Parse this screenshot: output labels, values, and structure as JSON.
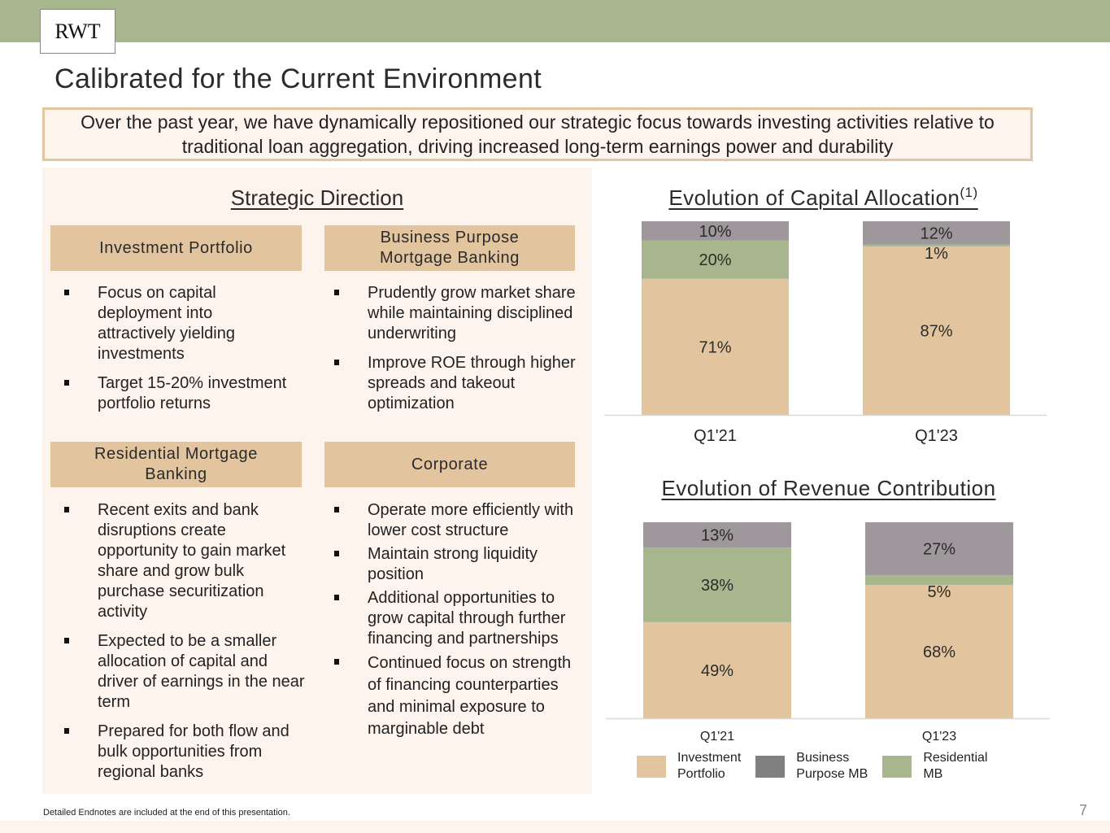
{
  "header": {
    "logo": "RWT",
    "title": "Calibrated for the Current Environment",
    "summary": "Over the past year, we have dynamically repositioned our strategic focus towards investing activities relative to traditional loan aggregation, driving increased long-term earnings power and durability"
  },
  "colors": {
    "topbar": "#a8b68d",
    "investment_portfolio": "#e2c59e",
    "business_purpose_mb": "#9e979b",
    "residential_mb": "#a8b68d",
    "panel_bg": "#fdf4ee",
    "legend_business_purpose_mb": "#808080"
  },
  "strategic": {
    "title": "Strategic Direction",
    "sections": [
      {
        "heading": "Investment Portfolio",
        "bullets": [
          "Focus on capital deployment into attractively yielding investments",
          "Target 15-20% investment portfolio returns"
        ]
      },
      {
        "heading": "Business Purpose Mortgage Banking",
        "bullets": [
          "Prudently grow market share while maintaining disciplined underwriting",
          "Improve ROE through higher spreads and takeout optimization"
        ]
      },
      {
        "heading": "Residential Mortgage Banking",
        "bullets": [
          "Recent exits and bank disruptions create opportunity to gain market share and grow bulk purchase securitization activity",
          "Expected to be a smaller allocation of capital and driver of earnings in the near term",
          "Prepared for both flow and bulk opportunities from regional banks"
        ]
      },
      {
        "heading": "Corporate",
        "bullets": [
          "Operate more efficiently with lower cost structure",
          "Maintain strong liquidity position",
          "Additional opportunities to grow capital through further financing and partnerships",
          "Continued focus on strength of financing counterparties and minimal exposure to marginable debt"
        ]
      }
    ]
  },
  "chart_data": [
    {
      "type": "bar",
      "stacked": true,
      "title": "Evolution of Capital Allocation",
      "title_superscript": "(1)",
      "categories": [
        "Q1'21",
        "Q1'23"
      ],
      "series": [
        {
          "name": "Investment Portfolio",
          "values": [
            71,
            87
          ],
          "labels": [
            "71%",
            "87%"
          ]
        },
        {
          "name": "Residential MB",
          "values": [
            20,
            1
          ],
          "labels": [
            "20%",
            "1%"
          ]
        },
        {
          "name": "Business Purpose MB",
          "values": [
            10,
            12
          ],
          "labels": [
            "10%",
            "12%"
          ]
        }
      ],
      "ylim": [
        0,
        100
      ],
      "unit": "%",
      "grid": false
    },
    {
      "type": "bar",
      "stacked": true,
      "title": "Evolution of Revenue Contribution",
      "categories": [
        "Q1'21",
        "Q1'23"
      ],
      "series": [
        {
          "name": "Investment Portfolio",
          "values": [
            49,
            68
          ],
          "labels": [
            "49%",
            "68%"
          ]
        },
        {
          "name": "Residential MB",
          "values": [
            38,
            5
          ],
          "labels": [
            "38%",
            "5%"
          ]
        },
        {
          "name": "Business Purpose MB",
          "values": [
            13,
            27
          ],
          "labels": [
            "13%",
            "27%"
          ]
        }
      ],
      "ylim": [
        0,
        100
      ],
      "unit": "%",
      "grid": false
    }
  ],
  "legend": {
    "placement": "bottom",
    "items": [
      {
        "label": "Investment Portfolio",
        "line1": "Investment",
        "line2": "Portfolio"
      },
      {
        "label": "Business Purpose MB",
        "line1": "Business",
        "line2": "Purpose MB"
      },
      {
        "label": "Residential MB",
        "line1": "Residential",
        "line2": "MB"
      }
    ]
  },
  "footer": {
    "note": "Detailed Endnotes are included at the end of this presentation.",
    "page_number": "7"
  }
}
